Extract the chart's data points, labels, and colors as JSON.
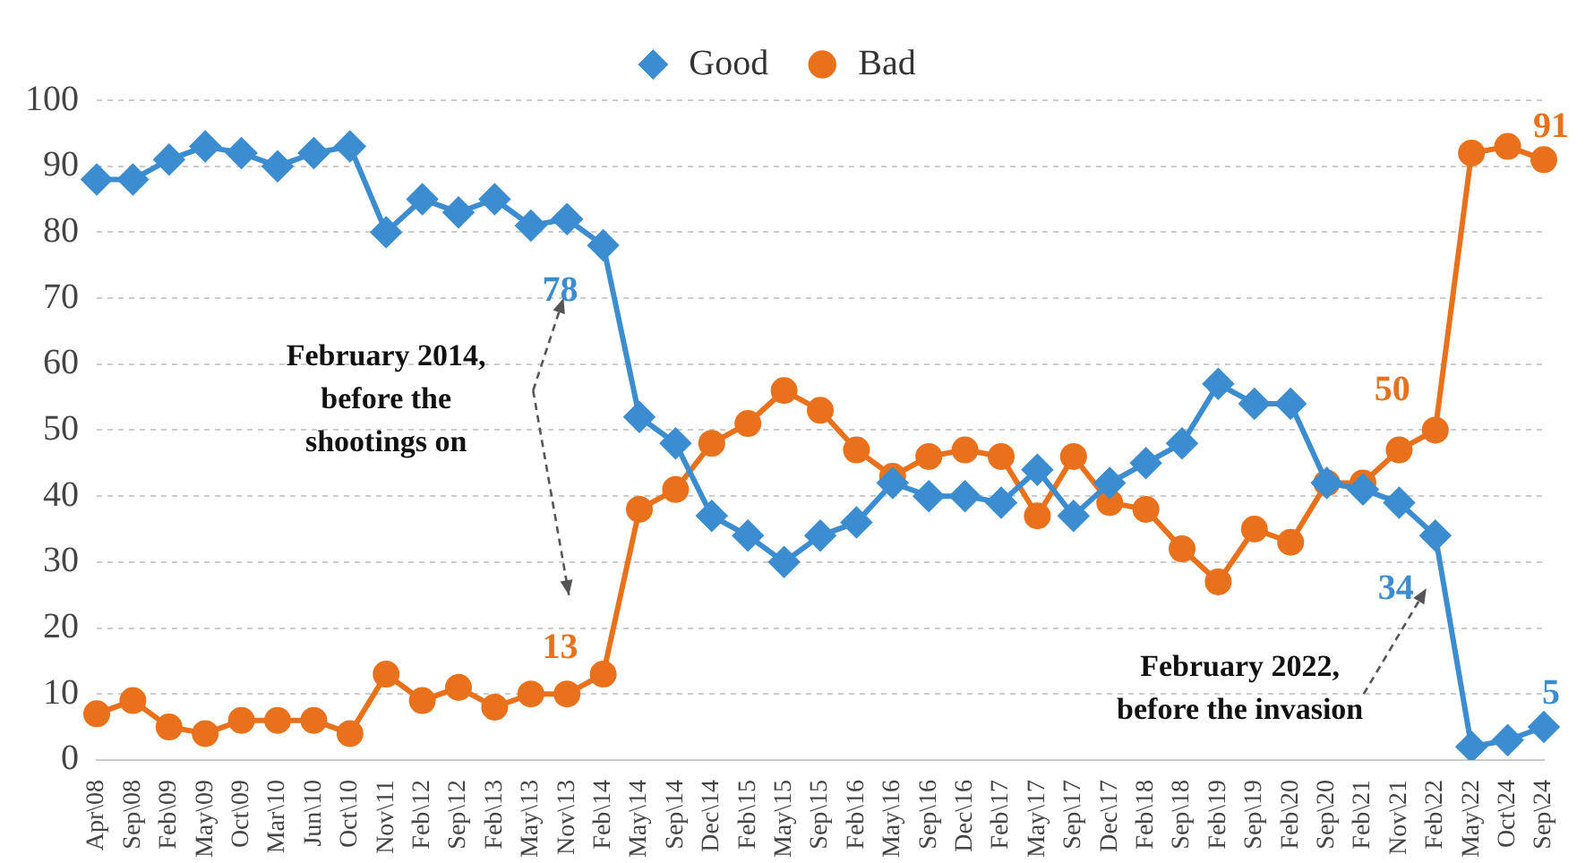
{
  "chart_data": {
    "type": "line",
    "categories": [
      "Apr\\08",
      "Sep\\08",
      "Feb\\09",
      "May\\09",
      "Oct\\09",
      "Mar\\10",
      "Jun\\10",
      "Oct\\10",
      "Nov\\11",
      "Feb\\12",
      "Sep\\12",
      "Feb\\13",
      "May\\13",
      "Nov\\13",
      "Feb\\14",
      "May\\14",
      "Sep\\14",
      "Dec\\14",
      "Feb\\15",
      "May\\15",
      "Sep\\15",
      "Feb\\16",
      "May\\16",
      "Sep\\16",
      "Dec\\16",
      "Feb\\17",
      "May\\17",
      "Sep\\17",
      "Dec\\17",
      "Feb\\18",
      "Sep\\18",
      "Feb\\19",
      "Sep\\19",
      "Feb\\20",
      "Sep\\20",
      "Feb\\21",
      "Nov\\21",
      "Feb\\22",
      "May\\22",
      "Oct\\24",
      "Sep\\24"
    ],
    "series": [
      {
        "name": "Good",
        "color": "#3c8dd0",
        "marker": "diamond",
        "values": [
          88,
          88,
          91,
          93,
          92,
          90,
          92,
          93,
          80,
          85,
          83,
          85,
          81,
          82,
          78,
          52,
          48,
          37,
          34,
          30,
          34,
          36,
          42,
          40,
          40,
          39,
          44,
          37,
          42,
          45,
          48,
          57,
          54,
          54,
          42,
          41,
          39,
          34,
          2,
          3,
          5
        ]
      },
      {
        "name": "Bad",
        "color": "#e9711c",
        "marker": "circle",
        "values": [
          7,
          9,
          5,
          4,
          6,
          6,
          6,
          4,
          13,
          9,
          11,
          8,
          10,
          10,
          13,
          38,
          41,
          48,
          51,
          56,
          53,
          47,
          43,
          46,
          47,
          46,
          37,
          46,
          39,
          38,
          32,
          27,
          35,
          33,
          42,
          42,
          47,
          50,
          92,
          93,
          91
        ]
      }
    ],
    "ylim": [
      0,
      100
    ],
    "yticks": [
      0,
      10,
      20,
      30,
      40,
      50,
      60,
      70,
      80,
      90,
      100
    ],
    "grid": "y",
    "legend": "top",
    "annotations": [
      {
        "text": "78",
        "x": "Feb\\14",
        "y": 78
      },
      {
        "text": "13",
        "x": "Feb\\14",
        "y": 13
      },
      {
        "text": "34",
        "x": "Feb\\22",
        "y": 34
      },
      {
        "text": "50",
        "x": "Feb\\22",
        "y": 50
      },
      {
        "text": "91",
        "x": "Sep\\24",
        "y": 91
      },
      {
        "text": "5",
        "x": "Sep\\24",
        "y": 5
      },
      "February 2014,\nbefore the\nshootings on",
      "February 2022,\nbefore the invasion"
    ]
  }
}
